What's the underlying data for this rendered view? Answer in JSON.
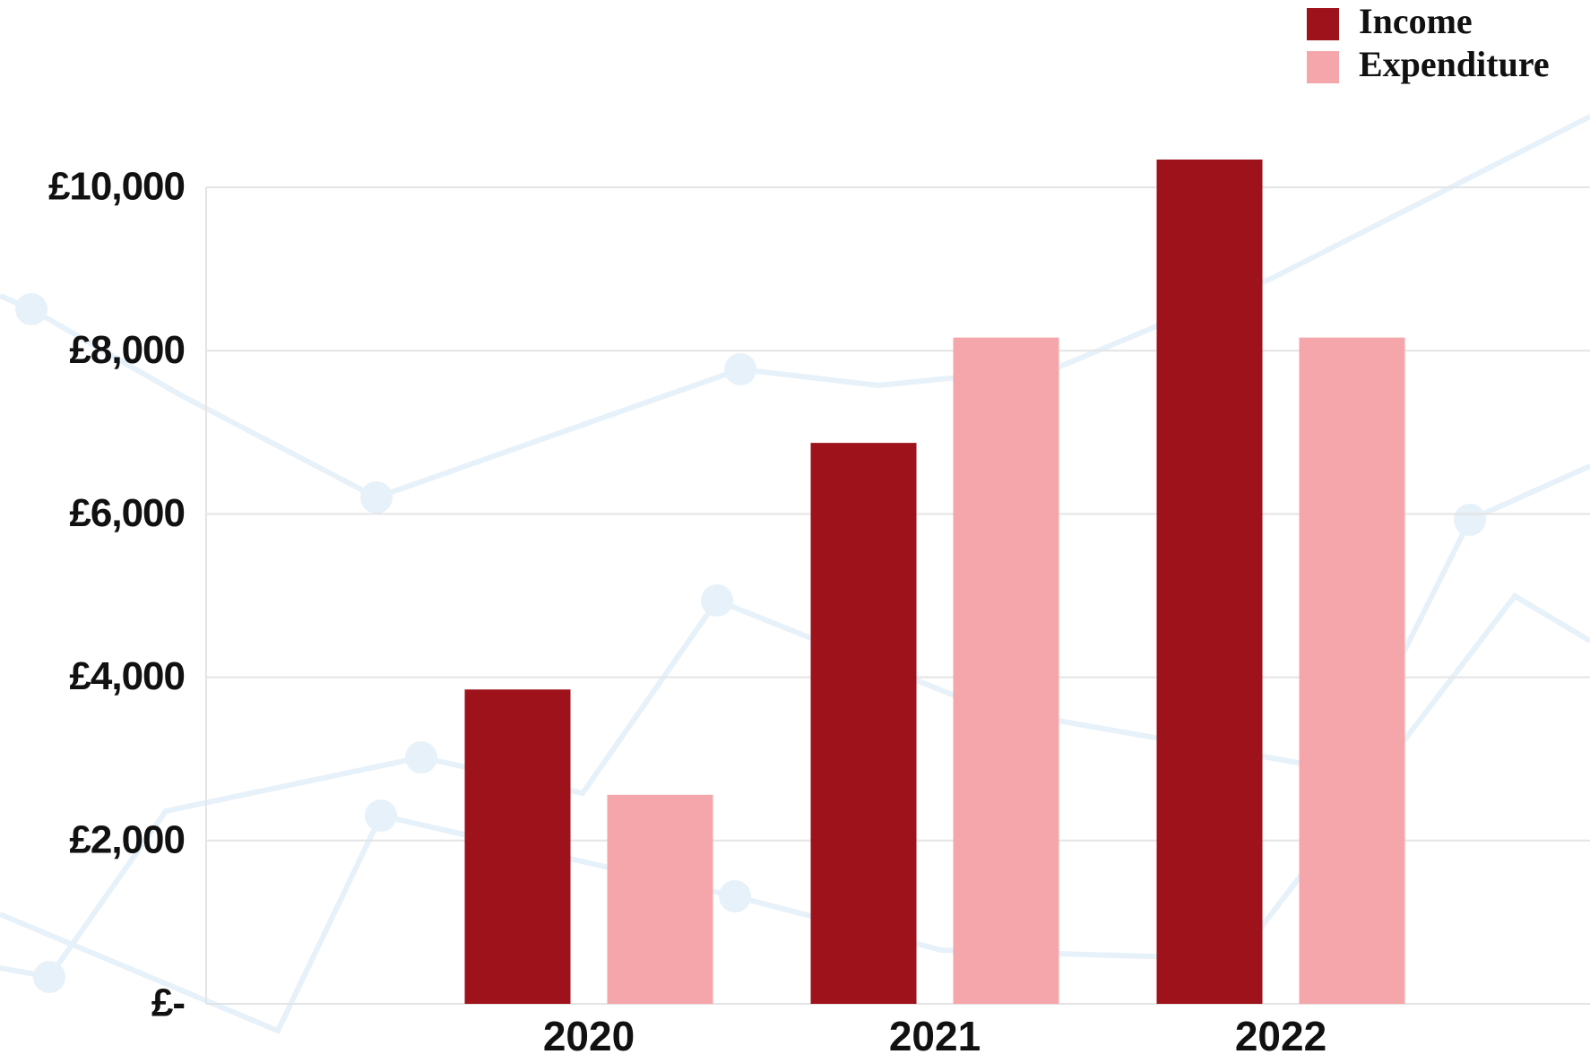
{
  "chart_data": {
    "type": "bar",
    "categories": [
      "2020",
      "2021",
      "2022"
    ],
    "series": [
      {
        "name": "Income",
        "color": "#9e121b",
        "values": [
          3850,
          6870,
          10340
        ]
      },
      {
        "name": "Expenditure",
        "color": "#f5a6aa",
        "values": [
          2560,
          8160,
          8160
        ]
      }
    ],
    "ylim": [
      0,
      10000
    ],
    "yticks": [
      {
        "value": 0,
        "label": "£-"
      },
      {
        "value": 2000,
        "label": "£2,000"
      },
      {
        "value": 4000,
        "label": "£4,000"
      },
      {
        "value": 6000,
        "label": "£6,000"
      },
      {
        "value": 8000,
        "label": "£8,000"
      },
      {
        "value": 10000,
        "label": "£10,000"
      }
    ],
    "grid": true,
    "legend": "top-right"
  }
}
